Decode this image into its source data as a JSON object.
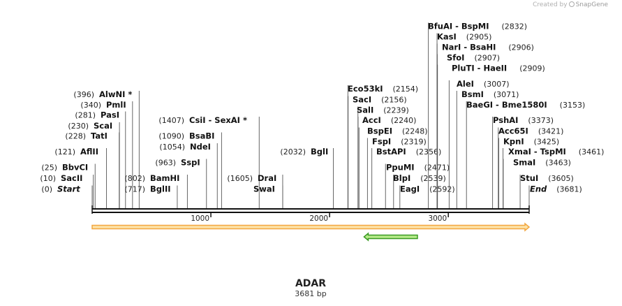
{
  "credit": {
    "prefix": "Created by",
    "brand": "SnapGene"
  },
  "sequence": {
    "name": "ADAR",
    "length_label": "3681 bp",
    "length": 3681
  },
  "ruler": {
    "ticks": [
      {
        "value": 1000,
        "label": "1000"
      },
      {
        "value": 2000,
        "label": "2000"
      },
      {
        "value": 3000,
        "label": "3000"
      }
    ]
  },
  "features": [
    {
      "name": "orange-feature-arrow",
      "start": 0,
      "end": 3681,
      "direction": "forward",
      "color": "#f2a640",
      "fill": "#fde2a6"
    },
    {
      "name": "green-feature-arrow",
      "start": 2290,
      "end": 2740,
      "direction": "reverse",
      "color": "#3a9a23",
      "fill": "#b6eb8a"
    }
  ],
  "sites": [
    {
      "enzyme": "Start",
      "position": "(0)",
      "italic": true
    },
    {
      "enzyme": "SacII",
      "position": "(10)"
    },
    {
      "enzyme": "BbvCI",
      "position": "(25)"
    },
    {
      "enzyme": "AflII",
      "position": "(121)"
    },
    {
      "enzyme": "TatI",
      "position": "(228)"
    },
    {
      "enzyme": "ScaI",
      "position": "(230)"
    },
    {
      "enzyme": "PasI",
      "position": "(281)"
    },
    {
      "enzyme": "PmlI",
      "position": "(340)"
    },
    {
      "enzyme": "AlwNI *",
      "position": "(396)"
    },
    {
      "enzyme": "BglII",
      "position": "(717)"
    },
    {
      "enzyme": "BamHI",
      "position": "(802)"
    },
    {
      "enzyme": "SspI",
      "position": "(963)"
    },
    {
      "enzyme": "NdeI",
      "position": "(1054)"
    },
    {
      "enzyme": "BsaBI",
      "position": "(1090)"
    },
    {
      "enzyme": "CsiI  - SexAI *",
      "position": "(1407)"
    },
    {
      "enzyme": "SwaI",
      "position": ""
    },
    {
      "enzyme": "DraI",
      "position": "(1605)"
    },
    {
      "enzyme": "BglI",
      "position": "(2032)"
    },
    {
      "enzyme": "Eco53kI",
      "position": "(2154)"
    },
    {
      "enzyme": "SacI",
      "position": "(2156)"
    },
    {
      "enzyme": "SalI",
      "position": "(2239)"
    },
    {
      "enzyme": "AccI",
      "position": "(2240)"
    },
    {
      "enzyme": "BspEI",
      "position": "(2248)"
    },
    {
      "enzyme": "FspI",
      "position": "(2319)"
    },
    {
      "enzyme": "BstAPI",
      "position": "(2356)"
    },
    {
      "enzyme": "PpuMI",
      "position": "(2471)"
    },
    {
      "enzyme": "BlpI",
      "position": "(2539)"
    },
    {
      "enzyme": "EagI",
      "position": "(2592)"
    },
    {
      "enzyme": "BfuAI  - BspMI",
      "position": "(2832)"
    },
    {
      "enzyme": "KasI",
      "position": "(2905)"
    },
    {
      "enzyme": "NarI  - BsaHI",
      "position": "(2906)"
    },
    {
      "enzyme": "SfoI",
      "position": "(2907)"
    },
    {
      "enzyme": "PluTI  - HaeII",
      "position": "(2909)"
    },
    {
      "enzyme": "AleI",
      "position": "(3007)"
    },
    {
      "enzyme": "BsmI",
      "position": "(3071)"
    },
    {
      "enzyme": "BaeGI  - Bme1580I",
      "position": "(3153)"
    },
    {
      "enzyme": "PshAI",
      "position": "(3373)"
    },
    {
      "enzyme": "Acc65I",
      "position": "(3421)"
    },
    {
      "enzyme": "KpnI",
      "position": "(3425)"
    },
    {
      "enzyme": "XmaI  - TspMI",
      "position": "(3461)"
    },
    {
      "enzyme": "SmaI",
      "position": "(3463)"
    },
    {
      "enzyme": "StuI",
      "position": "(3605)"
    },
    {
      "enzyme": "End",
      "position": "(3681)",
      "italic": true
    }
  ]
}
